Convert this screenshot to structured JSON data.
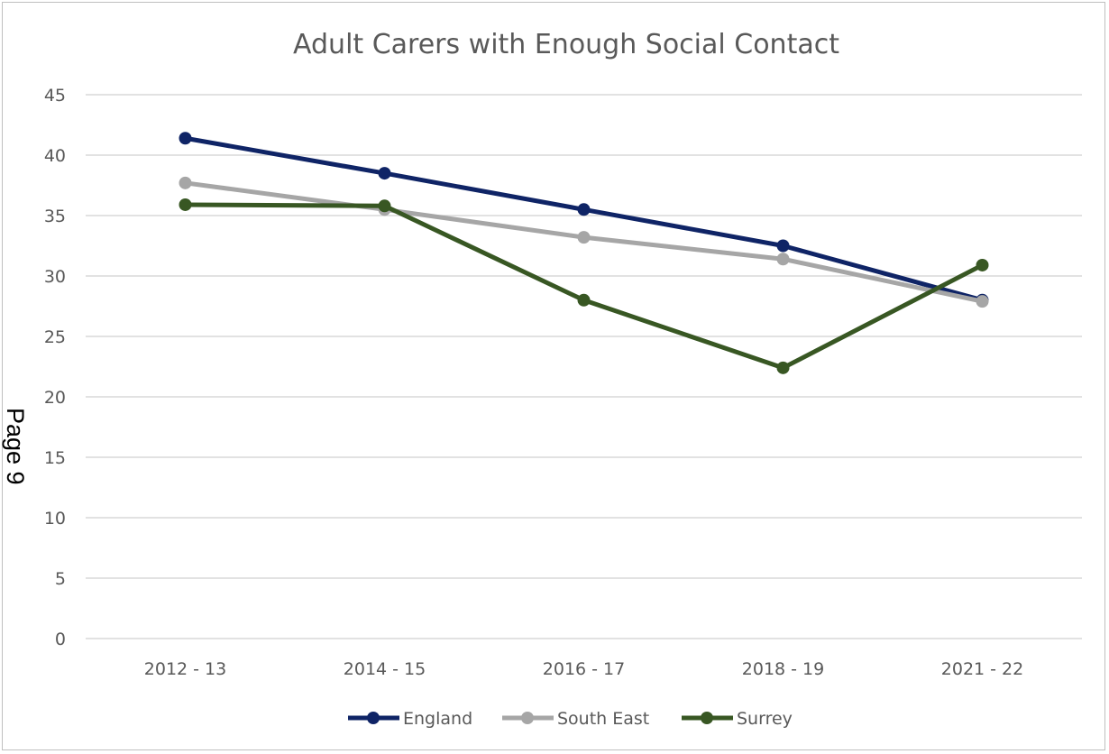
{
  "page_label": "Page 9",
  "chart_data": {
    "type": "line",
    "title": "Adult Carers with Enough Social Contact",
    "xlabel": "",
    "ylabel": "",
    "categories": [
      "2012 - 13",
      "2014 - 15",
      "2016 - 17",
      "2018 - 19",
      "2021 - 22"
    ],
    "ylim": [
      0,
      45
    ],
    "yticks": [
      0,
      5,
      10,
      15,
      20,
      25,
      30,
      35,
      40,
      45
    ],
    "grid": true,
    "legend_position": "bottom",
    "series": [
      {
        "name": "England",
        "color": "#0f2466",
        "values": [
          41.4,
          38.5,
          35.5,
          32.5,
          28.0
        ]
      },
      {
        "name": "South East",
        "color": "#a6a6a6",
        "values": [
          37.7,
          35.5,
          33.2,
          31.4,
          27.9
        ]
      },
      {
        "name": "Surrey",
        "color": "#385723",
        "values": [
          35.9,
          35.8,
          28.0,
          22.4,
          30.9
        ]
      }
    ]
  }
}
